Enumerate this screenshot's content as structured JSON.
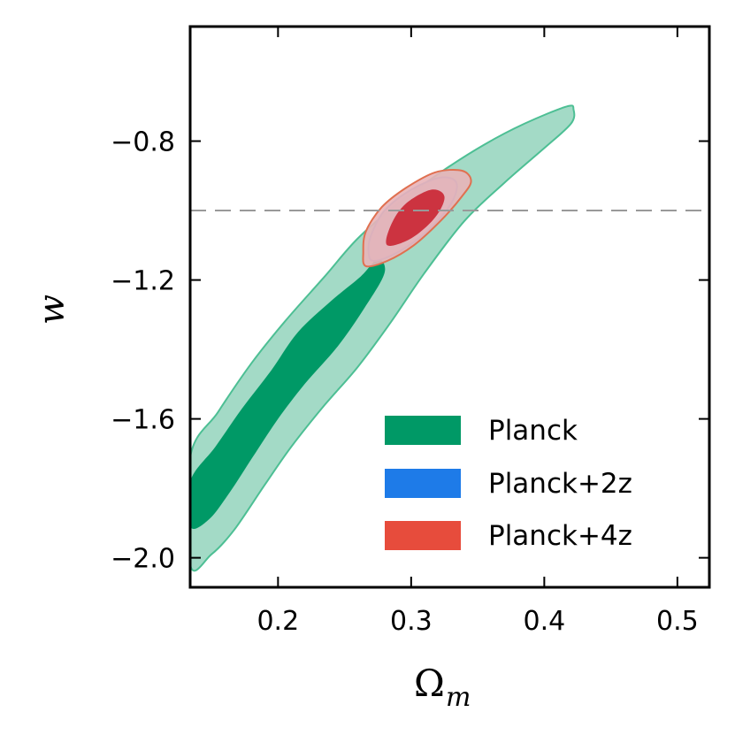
{
  "chart_data": {
    "type": "contour",
    "title": "",
    "xlabel": "Ω",
    "xlabel_subscript": "m",
    "ylabel": "w",
    "xlim": [
      0.134,
      0.524
    ],
    "ylim": [
      -2.085,
      -0.47
    ],
    "xticks": [
      0.2,
      0.3,
      0.4,
      0.5
    ],
    "xtick_labels": [
      "0.2",
      "0.3",
      "0.4",
      "0.5"
    ],
    "yticks": [
      -0.8,
      -1.2,
      -1.6,
      -2.0
    ],
    "ytick_labels": [
      "−0.8",
      "−1.2",
      "−1.6",
      "−2.0"
    ],
    "reference_line": {
      "y": -1.0,
      "style": "dashed",
      "color": "#999999"
    },
    "legend": {
      "position": "bottom-right"
    },
    "series": [
      {
        "name": "Planck",
        "legend_label": "Planck",
        "color": "#009966",
        "inner_color": "#009966",
        "outer_color": "#99d6c0",
        "edge_color": "#4dbf94",
        "contour_68": [
          [
            0.134,
            -1.91
          ],
          [
            0.148,
            -1.89
          ],
          [
            0.164,
            -1.81
          ],
          [
            0.181,
            -1.71
          ],
          [
            0.2,
            -1.6
          ],
          [
            0.22,
            -1.5
          ],
          [
            0.245,
            -1.39
          ],
          [
            0.265,
            -1.28
          ],
          [
            0.28,
            -1.18
          ],
          [
            0.275,
            -1.14
          ],
          [
            0.262,
            -1.19
          ],
          [
            0.24,
            -1.26
          ],
          [
            0.215,
            -1.35
          ],
          [
            0.195,
            -1.46
          ],
          [
            0.173,
            -1.57
          ],
          [
            0.153,
            -1.68
          ],
          [
            0.134,
            -1.78
          ]
        ],
        "contour_95": [
          [
            0.134,
            -2.02
          ],
          [
            0.15,
            -1.99
          ],
          [
            0.167,
            -1.92
          ],
          [
            0.19,
            -1.79
          ],
          [
            0.21,
            -1.68
          ],
          [
            0.235,
            -1.56
          ],
          [
            0.26,
            -1.45
          ],
          [
            0.285,
            -1.32
          ],
          [
            0.31,
            -1.18
          ],
          [
            0.34,
            -1.03
          ],
          [
            0.37,
            -0.92
          ],
          [
            0.4,
            -0.82
          ],
          [
            0.42,
            -0.75
          ],
          [
            0.422,
            -0.71
          ],
          [
            0.417,
            -0.7
          ],
          [
            0.385,
            -0.75
          ],
          [
            0.355,
            -0.81
          ],
          [
            0.322,
            -0.89
          ],
          [
            0.29,
            -0.98
          ],
          [
            0.26,
            -1.08
          ],
          [
            0.235,
            -1.19
          ],
          [
            0.205,
            -1.32
          ],
          [
            0.18,
            -1.44
          ],
          [
            0.155,
            -1.58
          ],
          [
            0.134,
            -1.71
          ]
        ]
      },
      {
        "name": "Planck+2z",
        "legend_label": "Planck+2z",
        "color": "#1e7be8",
        "inner_color": "#b0aec8",
        "outer_color": "#b5bcd8",
        "edge_color": "#6a9be0",
        "contour_68": [
          [
            0.282,
            -1.1
          ],
          [
            0.3,
            -1.08
          ],
          [
            0.318,
            -1.02
          ],
          [
            0.325,
            -0.96
          ],
          [
            0.315,
            -0.94
          ],
          [
            0.296,
            -0.98
          ],
          [
            0.285,
            -1.04
          ]
        ],
        "contour_95": [
          [
            0.272,
            -1.145
          ],
          [
            0.29,
            -1.12
          ],
          [
            0.312,
            -1.06
          ],
          [
            0.33,
            -0.98
          ],
          [
            0.334,
            -0.92
          ],
          [
            0.322,
            -0.905
          ],
          [
            0.3,
            -0.94
          ],
          [
            0.28,
            -1.0
          ],
          [
            0.27,
            -1.07
          ],
          [
            0.268,
            -1.12
          ]
        ]
      },
      {
        "name": "Planck+4z",
        "legend_label": "Planck+4z",
        "color": "#e74c3c",
        "inner_color": "#cc3340",
        "outer_color": "#e8b4b8",
        "edge_color": "#e07050",
        "contour_68": [
          [
            0.282,
            -1.1
          ],
          [
            0.3,
            -1.08
          ],
          [
            0.318,
            -1.02
          ],
          [
            0.325,
            -0.96
          ],
          [
            0.315,
            -0.94
          ],
          [
            0.296,
            -0.98
          ],
          [
            0.285,
            -1.04
          ]
        ],
        "contour_95": [
          [
            0.266,
            -1.16
          ],
          [
            0.282,
            -1.145
          ],
          [
            0.302,
            -1.1
          ],
          [
            0.322,
            -1.03
          ],
          [
            0.338,
            -0.96
          ],
          [
            0.345,
            -0.915
          ],
          [
            0.338,
            -0.885
          ],
          [
            0.318,
            -0.89
          ],
          [
            0.296,
            -0.935
          ],
          [
            0.278,
            -0.99
          ],
          [
            0.266,
            -1.06
          ],
          [
            0.264,
            -1.12
          ]
        ]
      }
    ]
  }
}
